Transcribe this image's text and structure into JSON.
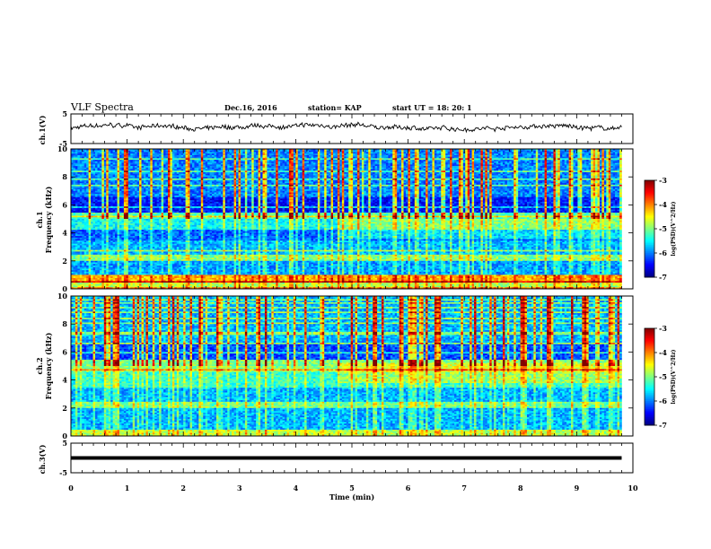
{
  "header": {
    "title": "VLF Spectra",
    "date": "Dec.16, 2016",
    "station": "station= KAP",
    "start": "start  UT =   18: 20: 1"
  },
  "chart_data": [
    {
      "type": "line",
      "panel": "ch1-waveform",
      "ylabel": "ch.1(V)",
      "ylim": [
        -5,
        5
      ],
      "yticks": [
        "5",
        "-5"
      ],
      "xlim": [
        0,
        10
      ],
      "x_end_min": 9.8,
      "description_values": "noisy trace fluctuating roughly between -1 and +2 V around 0"
    },
    {
      "type": "heatmap",
      "panel": "ch1-spectrogram",
      "ylabel": "ch.1\nFrequency (kHz)",
      "ylim": [
        0,
        10
      ],
      "yticks": [
        "0",
        "2",
        "4",
        "6",
        "8",
        "10"
      ],
      "xlim": [
        0,
        10
      ],
      "colorbar": {
        "label": "log(PSD)(V^2/Hz)",
        "range": [
          -7,
          -3
        ],
        "ticks": [
          "-3",
          "-4",
          "-5",
          "-6",
          "-7"
        ]
      }
    },
    {
      "type": "heatmap",
      "panel": "ch2-spectrogram",
      "ylabel": "ch.2\nFrequency (kHz)",
      "ylim": [
        0,
        10
      ],
      "yticks": [
        "0",
        "2",
        "4",
        "6",
        "8",
        "10"
      ],
      "xlim": [
        0,
        10
      ],
      "colorbar": {
        "label": "log(PSD)(V^2/Hz)",
        "range": [
          -7,
          -3
        ],
        "ticks": [
          "-3",
          "-4",
          "-5",
          "-6",
          "-7"
        ]
      }
    },
    {
      "type": "line",
      "panel": "ch3-waveform",
      "ylabel": "ch.3(V)",
      "ylim": [
        -5,
        5
      ],
      "yticks": [
        "5",
        "-5"
      ],
      "xlim": [
        0,
        10
      ],
      "x_end_min": 9.8,
      "constant_value": 0
    }
  ],
  "xaxis": {
    "label": "Time (min)",
    "ticks": [
      "0",
      "1",
      "2",
      "3",
      "4",
      "5",
      "6",
      "7",
      "8",
      "9",
      "10"
    ]
  }
}
